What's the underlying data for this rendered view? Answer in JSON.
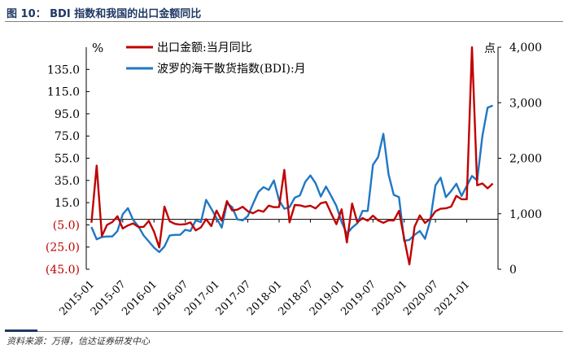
{
  "figure": {
    "title": "图 10： BDI 指数和我国的出口金额同比",
    "source": "资料来源：万得，信达证券研发中心"
  },
  "chart_data": {
    "type": "line",
    "title": "BDI指数和我国的出口金额同比",
    "left_unit": "%",
    "right_unit": "点",
    "left_axis": {
      "ylim": [
        -45,
        155
      ],
      "ticks": [
        -45,
        -25,
        -5,
        15,
        35,
        55,
        75,
        95,
        115,
        135
      ],
      "tick_labels": [
        "(45.0)",
        "(25.0)",
        "(5.0)",
        "15.0",
        "35.0",
        "55.0",
        "75.0",
        "95.0",
        "115.0",
        "135.0"
      ]
    },
    "right_axis": {
      "ylim": [
        0,
        4000
      ],
      "ticks": [
        0,
        1000,
        2000,
        3000,
        4000
      ],
      "tick_labels": [
        "0",
        "1,000",
        "2,000",
        "3,000",
        "4,000"
      ]
    },
    "x_ticks": [
      "2015-01",
      "2015-07",
      "2016-01",
      "2016-07",
      "2017-01",
      "2017-07",
      "2018-01",
      "2018-07",
      "2019-01",
      "2019-07",
      "2020-01",
      "2020-07",
      "2021-01"
    ],
    "months_start": "2015-01",
    "colors": {
      "export": "#c00000",
      "bdi": "#1f77c4",
      "axis_neg": "#c00000",
      "axis": "#000000"
    },
    "series": [
      {
        "name": "出口金额:当月同比",
        "axis": "left",
        "values": [
          -3,
          48.3,
          -15,
          -5,
          -2.5,
          2.8,
          -8.3,
          -5.5,
          -3.7,
          -6.9,
          -6.8,
          -1.4,
          -11.2,
          -25.4,
          11.5,
          -1.8,
          -4.1,
          -4.8,
          -4.4,
          -2.8,
          -10,
          -7.3,
          0.1,
          -6.1,
          7.9,
          -1.3,
          16.4,
          8,
          8.7,
          11.3,
          7.2,
          5.5,
          8.1,
          6.9,
          12.3,
          10.9,
          11.1,
          44.5,
          -2.7,
          12.9,
          12.6,
          11.3,
          12.2,
          9.8,
          14.5,
          15.6,
          5.4,
          -4.4,
          9.1,
          -20.8,
          14.2,
          -2.7,
          1.1,
          -1.3,
          3.3,
          -1,
          -3.2,
          -0.9,
          -1.1,
          7.6,
          -17.2,
          -40.6,
          -6.6,
          3.5,
          -3.3,
          0.5,
          7.2,
          9.5,
          9.9,
          11.4,
          21.1,
          18.1,
          18.1,
          154.9,
          30.6,
          32.3,
          27.9,
          32.2
        ]
      },
      {
        "name": "波罗的海干散货指数(BDI):月",
        "axis": "right",
        "values": [
          760,
          540,
          580,
          590,
          590,
          690,
          990,
          1100,
          890,
          770,
          610,
          500,
          390,
          310,
          410,
          610,
          620,
          620,
          710,
          690,
          880,
          850,
          1250,
          1090,
          920,
          750,
          1190,
          1120,
          900,
          880,
          960,
          1180,
          1390,
          1480,
          1430,
          1600,
          1240,
          1090,
          1120,
          1290,
          1330,
          1570,
          1690,
          1550,
          1310,
          1490,
          1320,
          1140,
          850,
          640,
          750,
          830,
          1050,
          1050,
          1880,
          2020,
          2440,
          1710,
          1340,
          1300,
          510,
          530,
          620,
          690,
          550,
          880,
          1510,
          1650,
          1300,
          1410,
          1540,
          1320,
          1500,
          1680,
          1600,
          2400,
          2910,
          2950
        ]
      }
    ],
    "legend": [
      {
        "label": "出口金额:当月同比",
        "color": "#c00000"
      },
      {
        "label": "波罗的海干散货指数(BDI):月",
        "color": "#1f77c4"
      }
    ],
    "legend_position": "top-left"
  }
}
